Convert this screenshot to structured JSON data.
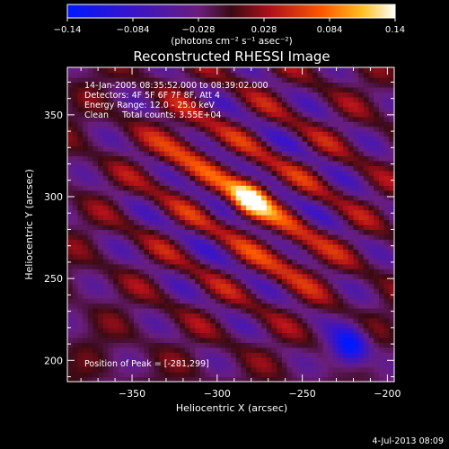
{
  "chart_data": {
    "type": "heatmap",
    "title": "Reconstructed RHESSI Image",
    "xlabel": "Heliocentric X (arcsec)",
    "ylabel": "Heliocentric Y (arcsec)",
    "xlim": [
      -388,
      -196
    ],
    "ylim": [
      187,
      379
    ],
    "x_ticks": [
      -350,
      -300,
      -250,
      -200
    ],
    "y_ticks": [
      200,
      250,
      300,
      350
    ],
    "x_tick_labels": [
      "−350",
      "−300",
      "−250",
      "−200"
    ],
    "y_tick_labels": [
      "200",
      "250",
      "300",
      "350"
    ],
    "colorbar": {
      "min": -0.14,
      "max": 0.14,
      "tick_values": [
        -0.14,
        -0.084,
        -0.028,
        0.028,
        0.084,
        0.14
      ],
      "tick_labels": [
        "−0.14",
        "−0.084",
        "−0.028",
        "0.028",
        "0.084",
        "0.14"
      ],
      "unit_label": "(photons cm⁻² s⁻¹ asec⁻²)"
    },
    "peak": {
      "x": -281,
      "y": 299
    },
    "annotations": [
      "14-Jan-2005 08:35:52.000 to 08:39:02.000",
      "Detectors: 4F 5F 6F 7F 8F, Att 4",
      "Energy Range: 12.0 - 25.0 keV",
      "Clean     Total counts: 3.55E+04"
    ],
    "peak_label": "Position of Peak = [-281,299]"
  },
  "footer": {
    "timestamp": "4-Jul-2013 08:09"
  }
}
